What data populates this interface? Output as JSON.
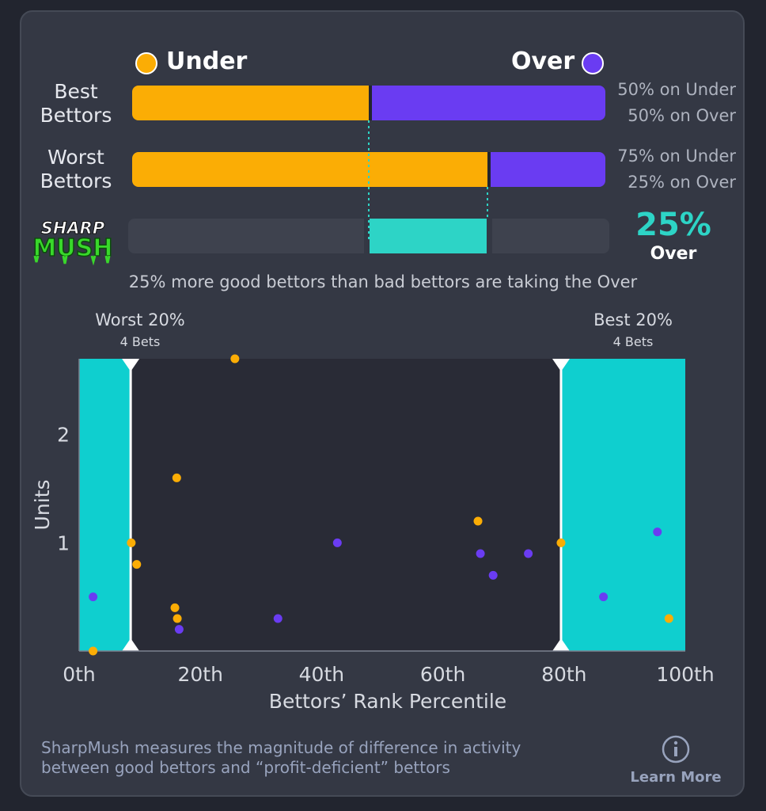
{
  "legend": {
    "under_label": "Under",
    "over_label": "Over",
    "under_color": "#fbad05",
    "over_color": "#6a3cf2",
    "sharp_color": "#2dd4c6"
  },
  "rows": [
    {
      "label_line1": "Best",
      "label_line2": "Bettors",
      "under_pct": 50,
      "over_pct": 50,
      "under_text": "50% on Under",
      "over_text": "50% on Over"
    },
    {
      "label_line1": "Worst",
      "label_line2": "Bettors",
      "under_pct": 75,
      "over_pct": 25,
      "under_text": "75% on Under",
      "over_text": "25% on Over"
    }
  ],
  "sharpmush": {
    "logo_line1": "SHARP",
    "logo_line2": "MUSH",
    "value_text": "25%",
    "side_text": "Over",
    "diff_start_pct": 50,
    "diff_end_pct": 75,
    "summary": "25% more good bettors than bad bettors are taking the Over"
  },
  "chart_data": {
    "type": "scatter",
    "xlabel": "Bettors’ Rank Percentile",
    "ylabel": "Units",
    "x_ticks": [
      "0th",
      "20th",
      "40th",
      "60th",
      "80th",
      "100th"
    ],
    "x_tick_values": [
      0,
      20,
      40,
      60,
      80,
      100
    ],
    "y_ticks": [
      1,
      2
    ],
    "xlim": [
      0,
      100
    ],
    "ylim": [
      0,
      2.7
    ],
    "grid": false,
    "bands": [
      {
        "label": "Worst 20%",
        "sublabel": "4 Bets",
        "x_start": 0,
        "x_end": 8.5
      },
      {
        "label": "Best 20%",
        "sublabel": "4 Bets",
        "x_end": 100,
        "x_start": 79.5
      }
    ],
    "series": [
      {
        "name": "Under",
        "color": "#fbad05",
        "points": [
          [
            2.3,
            0.0
          ],
          [
            8.6,
            1.0
          ],
          [
            9.5,
            0.8
          ],
          [
            15.8,
            0.4
          ],
          [
            16.1,
            1.6
          ],
          [
            16.2,
            0.3
          ],
          [
            25.7,
            2.7
          ],
          [
            65.8,
            1.2
          ],
          [
            79.5,
            1.0
          ],
          [
            97.3,
            0.3
          ]
        ]
      },
      {
        "name": "Over",
        "color": "#6a3cf2",
        "points": [
          [
            2.3,
            0.5
          ],
          [
            16.5,
            0.2
          ],
          [
            32.8,
            0.3
          ],
          [
            42.6,
            1.0
          ],
          [
            66.2,
            0.9
          ],
          [
            68.3,
            0.7
          ],
          [
            74.1,
            0.9
          ],
          [
            86.5,
            0.5
          ],
          [
            95.4,
            1.1
          ]
        ]
      }
    ]
  },
  "footer": {
    "line1": "SharpMush measures the magnitude of difference in activity",
    "line2": "between good bettors and “profit-deficient” bettors",
    "learn_more": "Learn More"
  }
}
